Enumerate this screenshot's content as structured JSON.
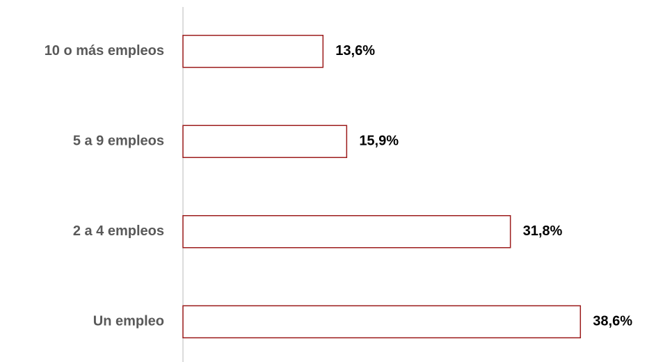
{
  "chart_data": {
    "type": "hbar",
    "categories": [
      "10 o más empleos",
      "5 a 9 empleos",
      "2 a 4 empleos",
      "Un empleo"
    ],
    "values": [
      13.6,
      15.9,
      31.8,
      38.6
    ],
    "value_labels": [
      "13,6%",
      "15,9%",
      "31,8%",
      "38,6%"
    ],
    "color": "#9c1c1c",
    "xlim": [
      0,
      40
    ]
  }
}
